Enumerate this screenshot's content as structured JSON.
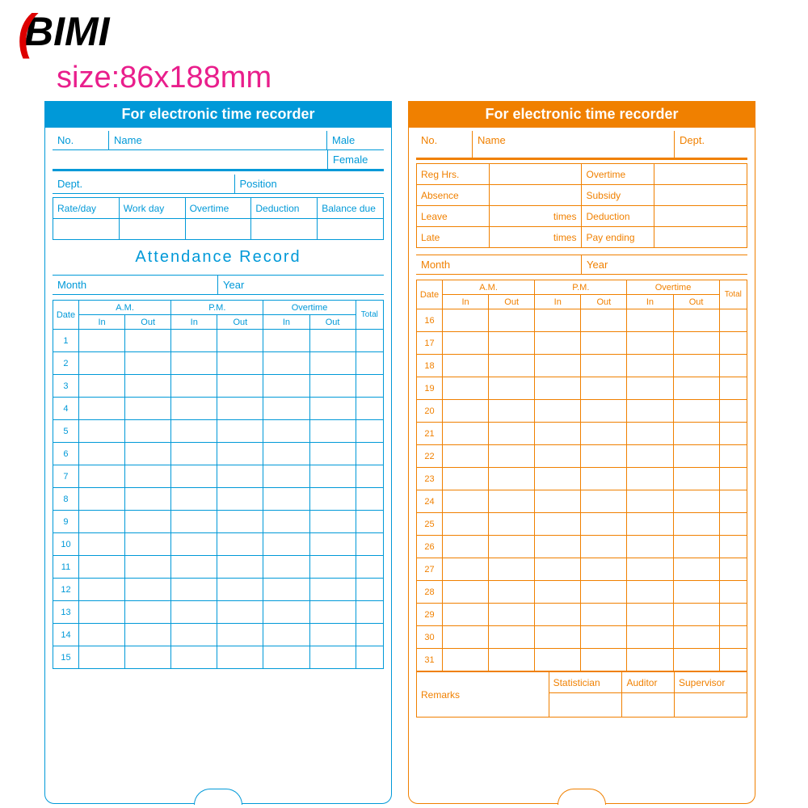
{
  "logo": "BIMI",
  "sizeLabel": "size:86x188mm",
  "blue": {
    "color": "#0099d8",
    "header": "For electronic time recorder",
    "fields": {
      "no": "No.",
      "name": "Name",
      "male": "Male",
      "female": "Female",
      "dept": "Dept.",
      "position": "Position"
    },
    "cols": [
      "Rate/day",
      "Work day",
      "Overtime",
      "Deduction",
      "Balance due"
    ],
    "sectionTitle": "Attendance  Record",
    "month": "Month",
    "year": "Year",
    "gridHead": {
      "date": "Date",
      "am": "A.M.",
      "pm": "P.M.",
      "ot": "Overtime",
      "in": "In",
      "out": "Out",
      "total": "Total"
    },
    "days": [
      1,
      2,
      3,
      4,
      5,
      6,
      7,
      8,
      9,
      10,
      11,
      12,
      13,
      14,
      15
    ]
  },
  "orange": {
    "color": "#f08000",
    "header": "For electronic time recorder",
    "fields": {
      "no": "No.",
      "name": "Name",
      "dept": "Dept."
    },
    "rows": [
      [
        "Reg Hrs.",
        "",
        "Overtime",
        ""
      ],
      [
        "Absence",
        "",
        "Subsidy",
        ""
      ],
      [
        "Leave",
        "times",
        "Deduction",
        ""
      ],
      [
        "Late",
        "times",
        "Pay ending",
        ""
      ]
    ],
    "month": "Month",
    "year": "Year",
    "gridHead": {
      "date": "Date",
      "am": "A.M.",
      "pm": "P.M.",
      "ot": "Overtime",
      "in": "In",
      "out": "Out",
      "total": "Total"
    },
    "days": [
      16,
      17,
      18,
      19,
      20,
      21,
      22,
      23,
      24,
      25,
      26,
      27,
      28,
      29,
      30,
      31
    ],
    "footer": {
      "remarks": "Remarks",
      "stat": "Statistician",
      "aud": "Auditor",
      "sup": "Supervisor"
    }
  }
}
